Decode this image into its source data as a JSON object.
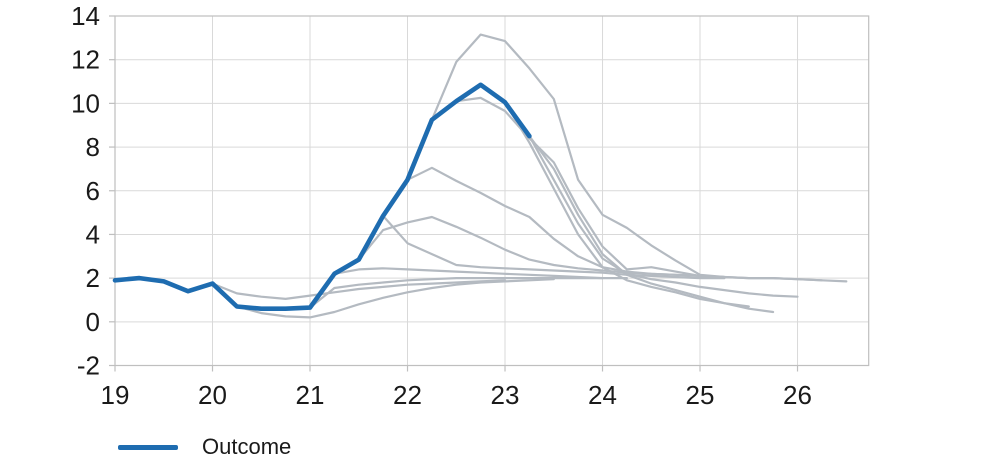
{
  "chart_data": {
    "type": "line",
    "title": "",
    "xlabel": "",
    "ylabel": "",
    "x_ticks": [
      19,
      20,
      21,
      22,
      23,
      24,
      25,
      26
    ],
    "y_ticks": [
      -2,
      0,
      2,
      4,
      6,
      8,
      10,
      12,
      14
    ],
    "x_range": [
      19,
      26.73
    ],
    "y_range": [
      -2,
      14
    ],
    "grid": true,
    "legend": {
      "position": "bottom-left",
      "entries": [
        {
          "label": "Outcome",
          "color": "#1e6cb0"
        }
      ]
    },
    "colors": {
      "outcome": "#1e6cb0",
      "forecast": "#b4bac1",
      "grid": "#d9d9d9",
      "border": "#bfbfbf",
      "tick": "#bfbfbf",
      "text": "#1a1a1a"
    },
    "series": [
      {
        "name": "Outcome",
        "role": "outcome",
        "points": [
          [
            19,
            1.9
          ],
          [
            19.25,
            2.0
          ],
          [
            19.5,
            1.85
          ],
          [
            19.75,
            1.4
          ],
          [
            20,
            1.75
          ],
          [
            20.25,
            0.7
          ],
          [
            20.5,
            0.6
          ],
          [
            20.75,
            0.6
          ],
          [
            21,
            0.65
          ],
          [
            21.25,
            2.2
          ],
          [
            21.5,
            2.85
          ],
          [
            21.75,
            4.85
          ],
          [
            22,
            6.5
          ],
          [
            22.25,
            9.25
          ],
          [
            22.5,
            10.1
          ],
          [
            22.75,
            10.85
          ],
          [
            23,
            10.05
          ],
          [
            23.25,
            8.5
          ]
        ]
      },
      {
        "name": "forecast-1",
        "role": "forecast",
        "points": [
          [
            20,
            1.75
          ],
          [
            20.25,
            1.3
          ],
          [
            20.5,
            1.15
          ],
          [
            20.75,
            1.05
          ],
          [
            21,
            1.2
          ],
          [
            21.25,
            1.35
          ],
          [
            21.5,
            1.5
          ],
          [
            21.75,
            1.6
          ],
          [
            22,
            1.7
          ],
          [
            22.25,
            1.75
          ],
          [
            22.5,
            1.8
          ],
          [
            22.75,
            1.85
          ],
          [
            23,
            1.9
          ]
        ]
      },
      {
        "name": "forecast-2",
        "role": "forecast",
        "points": [
          [
            20.25,
            0.7
          ],
          [
            20.5,
            0.4
          ],
          [
            20.75,
            0.25
          ],
          [
            21,
            0.2
          ],
          [
            21.25,
            0.45
          ],
          [
            21.5,
            0.8
          ],
          [
            21.75,
            1.1
          ],
          [
            22,
            1.35
          ],
          [
            22.25,
            1.55
          ],
          [
            22.5,
            1.7
          ],
          [
            22.75,
            1.8
          ],
          [
            23,
            1.85
          ],
          [
            23.25,
            1.9
          ],
          [
            23.5,
            1.95
          ]
        ]
      },
      {
        "name": "forecast-3",
        "role": "forecast",
        "points": [
          [
            21,
            0.65
          ],
          [
            21.25,
            1.55
          ],
          [
            21.5,
            1.7
          ],
          [
            21.75,
            1.8
          ],
          [
            22,
            1.9
          ],
          [
            22.25,
            1.95
          ],
          [
            22.5,
            2.0
          ],
          [
            22.75,
            2.0
          ],
          [
            23,
            2.0
          ],
          [
            23.25,
            2.0
          ],
          [
            23.5,
            2.0
          ],
          [
            23.75,
            2.0
          ],
          [
            24,
            2.0
          ]
        ]
      },
      {
        "name": "forecast-4",
        "role": "forecast",
        "points": [
          [
            21.25,
            2.2
          ],
          [
            21.5,
            2.4
          ],
          [
            21.75,
            2.45
          ],
          [
            22,
            2.4
          ],
          [
            22.25,
            2.35
          ],
          [
            22.5,
            2.3
          ],
          [
            22.75,
            2.25
          ],
          [
            23,
            2.2
          ],
          [
            23.25,
            2.15
          ],
          [
            23.5,
            2.1
          ],
          [
            23.75,
            2.05
          ],
          [
            24,
            2.0
          ],
          [
            24.25,
            2.0
          ]
        ]
      },
      {
        "name": "forecast-5",
        "role": "forecast",
        "points": [
          [
            21.5,
            2.85
          ],
          [
            21.75,
            4.2
          ],
          [
            22,
            4.55
          ],
          [
            22.25,
            4.8
          ],
          [
            22.5,
            4.35
          ],
          [
            22.75,
            3.85
          ],
          [
            23,
            3.3
          ],
          [
            23.25,
            2.85
          ],
          [
            23.5,
            2.6
          ],
          [
            23.75,
            2.45
          ],
          [
            24,
            2.35
          ],
          [
            24.25,
            2.25
          ],
          [
            24.5,
            2.2
          ],
          [
            24.75,
            2.15
          ],
          [
            25,
            2.1
          ]
        ]
      },
      {
        "name": "forecast-6",
        "role": "forecast",
        "points": [
          [
            21.75,
            4.85
          ],
          [
            22,
            3.6
          ],
          [
            22.25,
            3.1
          ],
          [
            22.5,
            2.6
          ],
          [
            22.75,
            2.5
          ],
          [
            23,
            2.45
          ],
          [
            23.25,
            2.4
          ],
          [
            23.5,
            2.35
          ],
          [
            23.75,
            2.3
          ],
          [
            24,
            2.25
          ],
          [
            24.25,
            2.15
          ],
          [
            24.5,
            2.1
          ],
          [
            24.75,
            2.05
          ],
          [
            25,
            2.0
          ],
          [
            25.25,
            2.0
          ]
        ]
      },
      {
        "name": "forecast-7",
        "role": "forecast",
        "points": [
          [
            22,
            6.5
          ],
          [
            22.25,
            7.05
          ],
          [
            22.5,
            6.45
          ],
          [
            22.75,
            5.9
          ],
          [
            23,
            5.3
          ],
          [
            23.25,
            4.8
          ],
          [
            23.5,
            3.8
          ],
          [
            23.75,
            3.0
          ],
          [
            24,
            2.5
          ],
          [
            24.25,
            2.3
          ],
          [
            24.5,
            2.2
          ],
          [
            24.75,
            2.15
          ],
          [
            25,
            2.1
          ],
          [
            25.25,
            2.05
          ]
        ]
      },
      {
        "name": "forecast-8",
        "role": "forecast",
        "points": [
          [
            22.25,
            9.25
          ],
          [
            22.5,
            11.9
          ],
          [
            22.75,
            13.15
          ],
          [
            23,
            12.85
          ],
          [
            23.25,
            11.6
          ],
          [
            23.5,
            10.2
          ],
          [
            23.75,
            6.5
          ],
          [
            24,
            4.9
          ],
          [
            24.25,
            4.3
          ],
          [
            24.5,
            3.5
          ],
          [
            24.75,
            2.8
          ],
          [
            25,
            2.15
          ],
          [
            25.25,
            2.05
          ],
          [
            25.5,
            2.0
          ],
          [
            25.75,
            2.0
          ],
          [
            26,
            1.95
          ],
          [
            26.25,
            1.9
          ],
          [
            26.5,
            1.85
          ]
        ]
      },
      {
        "name": "forecast-9",
        "role": "forecast",
        "points": [
          [
            22.5,
            10.1
          ],
          [
            22.75,
            10.25
          ],
          [
            23,
            9.65
          ],
          [
            23.25,
            8.4
          ],
          [
            23.5,
            7.3
          ],
          [
            23.75,
            5.2
          ],
          [
            24,
            3.45
          ],
          [
            24.25,
            2.4
          ],
          [
            24.5,
            2.5
          ],
          [
            24.75,
            2.3
          ],
          [
            25,
            2.1
          ],
          [
            25.25,
            2.05
          ],
          [
            25.5,
            2.0
          ],
          [
            25.75,
            2.0
          ],
          [
            26,
            1.95
          ],
          [
            26.25,
            1.9
          ]
        ]
      },
      {
        "name": "forecast-10",
        "role": "forecast",
        "points": [
          [
            22.75,
            10.85
          ],
          [
            23,
            10.05
          ],
          [
            23.25,
            8.5
          ],
          [
            23.5,
            6.5
          ],
          [
            23.75,
            4.5
          ],
          [
            24,
            2.9
          ],
          [
            24.25,
            2.2
          ],
          [
            24.5,
            1.95
          ],
          [
            24.75,
            1.8
          ],
          [
            25,
            1.6
          ],
          [
            25.25,
            1.45
          ],
          [
            25.5,
            1.3
          ],
          [
            25.75,
            1.2
          ],
          [
            26,
            1.15
          ]
        ]
      },
      {
        "name": "forecast-11",
        "role": "forecast",
        "points": [
          [
            23,
            10.05
          ],
          [
            23.25,
            8.2
          ],
          [
            23.5,
            6.1
          ],
          [
            23.75,
            4.0
          ],
          [
            24,
            2.5
          ],
          [
            24.25,
            1.9
          ],
          [
            24.5,
            1.6
          ],
          [
            24.75,
            1.35
          ],
          [
            25,
            1.05
          ],
          [
            25.25,
            0.85
          ],
          [
            25.5,
            0.7
          ]
        ]
      },
      {
        "name": "forecast-12",
        "role": "forecast",
        "points": [
          [
            23.25,
            8.5
          ],
          [
            23.5,
            7.0
          ],
          [
            23.75,
            4.9
          ],
          [
            24,
            3.1
          ],
          [
            24.25,
            2.15
          ],
          [
            24.5,
            1.75
          ],
          [
            24.75,
            1.45
          ],
          [
            25,
            1.15
          ],
          [
            25.25,
            0.85
          ],
          [
            25.5,
            0.6
          ],
          [
            25.75,
            0.45
          ]
        ]
      }
    ]
  }
}
